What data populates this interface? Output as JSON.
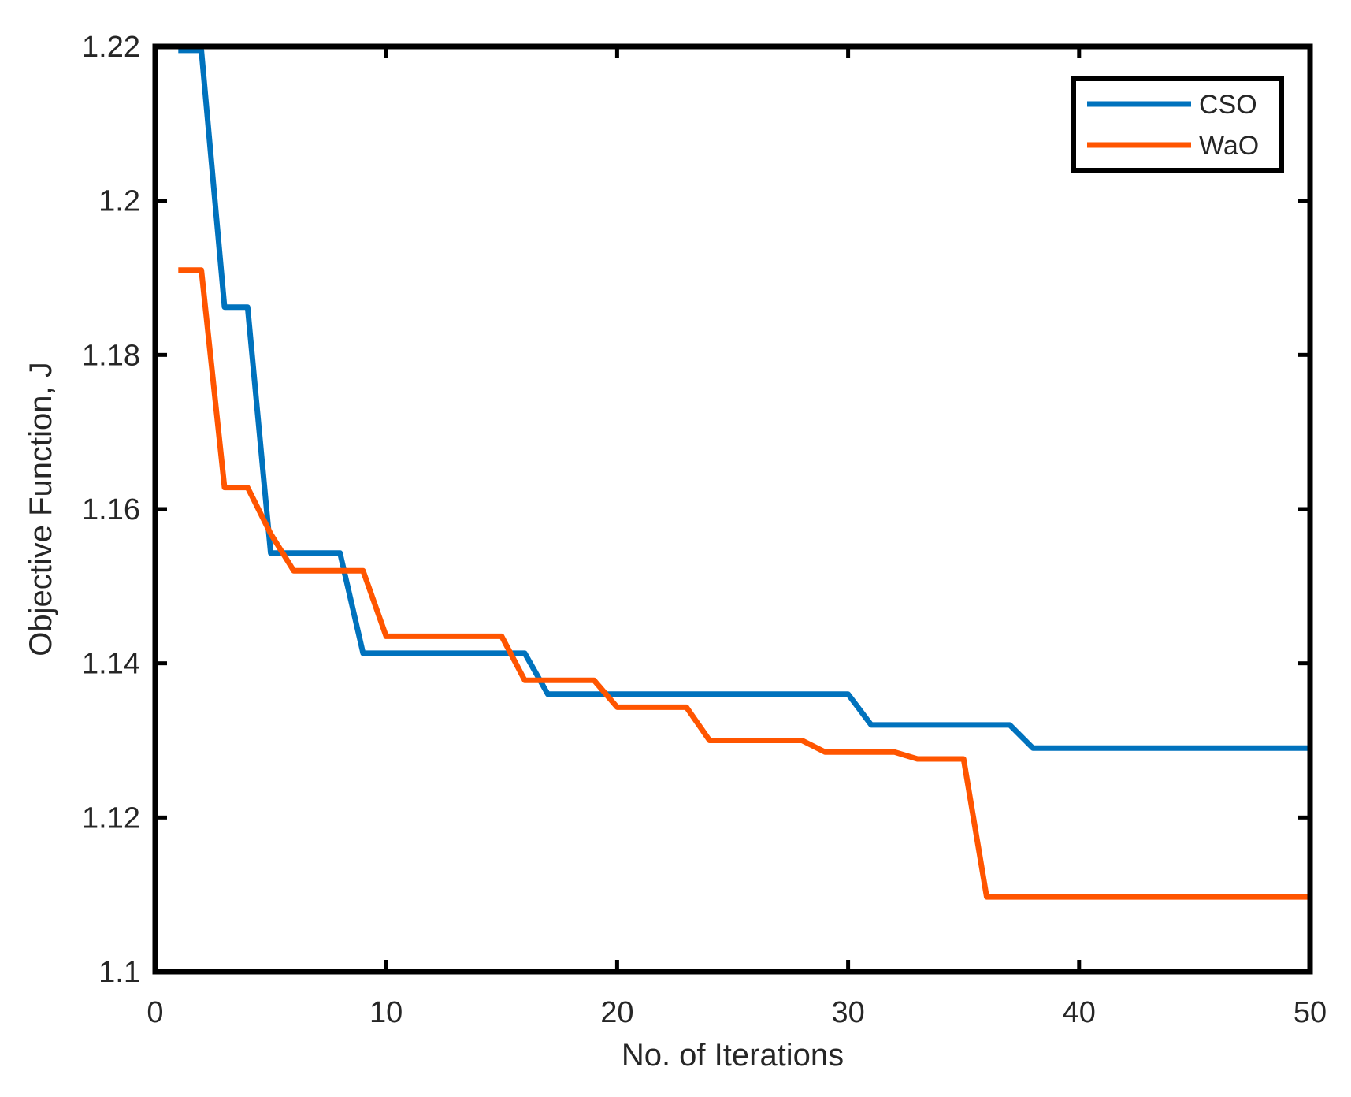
{
  "chart_data": {
    "type": "line",
    "title": "",
    "xlabel": "No. of Iterations",
    "ylabel": "Objective Function, J",
    "xlim": [
      0,
      50
    ],
    "ylim": [
      1.1,
      1.22
    ],
    "xticks": [
      0,
      10,
      20,
      30,
      40,
      50
    ],
    "xtick_labels": [
      "0",
      "10",
      "20",
      "30",
      "40",
      "50"
    ],
    "yticks": [
      1.1,
      1.12,
      1.14,
      1.16,
      1.18,
      1.2,
      1.22
    ],
    "ytick_labels": [
      "1.1",
      "1.12",
      "1.14",
      "1.16",
      "1.18",
      "1.2",
      "1.22"
    ],
    "grid": false,
    "legend_position": "top-right",
    "series": [
      {
        "name": "CSO",
        "color": "#0072BD",
        "x": [
          1,
          2,
          3,
          4,
          5,
          6,
          7,
          8,
          9,
          10,
          11,
          12,
          13,
          14,
          15,
          16,
          17,
          18,
          19,
          20,
          21,
          22,
          23,
          24,
          25,
          26,
          27,
          28,
          29,
          30,
          31,
          32,
          33,
          34,
          35,
          36,
          37,
          38,
          39,
          40,
          41,
          42,
          43,
          44,
          45,
          46,
          47,
          48,
          49,
          50
        ],
        "y": [
          1.2195,
          1.2195,
          1.1862,
          1.1862,
          1.1543,
          1.1543,
          1.1543,
          1.1543,
          1.1413,
          1.1413,
          1.1413,
          1.1413,
          1.1413,
          1.1413,
          1.1413,
          1.1413,
          1.136,
          1.136,
          1.136,
          1.136,
          1.136,
          1.136,
          1.136,
          1.136,
          1.136,
          1.136,
          1.136,
          1.136,
          1.136,
          1.136,
          1.132,
          1.132,
          1.132,
          1.132,
          1.132,
          1.132,
          1.132,
          1.129,
          1.129,
          1.129,
          1.129,
          1.129,
          1.129,
          1.129,
          1.129,
          1.129,
          1.129,
          1.129,
          1.129,
          1.129
        ]
      },
      {
        "name": "WaO",
        "color": "#FF5500",
        "x": [
          1,
          2,
          3,
          4,
          5,
          6,
          7,
          8,
          9,
          10,
          11,
          12,
          13,
          14,
          15,
          16,
          17,
          18,
          19,
          20,
          21,
          22,
          23,
          24,
          25,
          26,
          27,
          28,
          29,
          30,
          31,
          32,
          33,
          34,
          35,
          36,
          37,
          38,
          39,
          40,
          41,
          42,
          43,
          44,
          45,
          46,
          47,
          48,
          49,
          50
        ],
        "y": [
          1.191,
          1.191,
          1.1628,
          1.1628,
          1.1568,
          1.152,
          1.152,
          1.152,
          1.152,
          1.1435,
          1.1435,
          1.1435,
          1.1435,
          1.1435,
          1.1435,
          1.1378,
          1.1378,
          1.1378,
          1.1378,
          1.1343,
          1.1343,
          1.1343,
          1.1343,
          1.13,
          1.13,
          1.13,
          1.13,
          1.13,
          1.1285,
          1.1285,
          1.1285,
          1.1285,
          1.1276,
          1.1276,
          1.1276,
          1.1097,
          1.1097,
          1.1097,
          1.1097,
          1.1097,
          1.1097,
          1.1097,
          1.1097,
          1.1097,
          1.1097,
          1.1097,
          1.1097,
          1.1097,
          1.1097,
          1.1097
        ]
      }
    ]
  }
}
